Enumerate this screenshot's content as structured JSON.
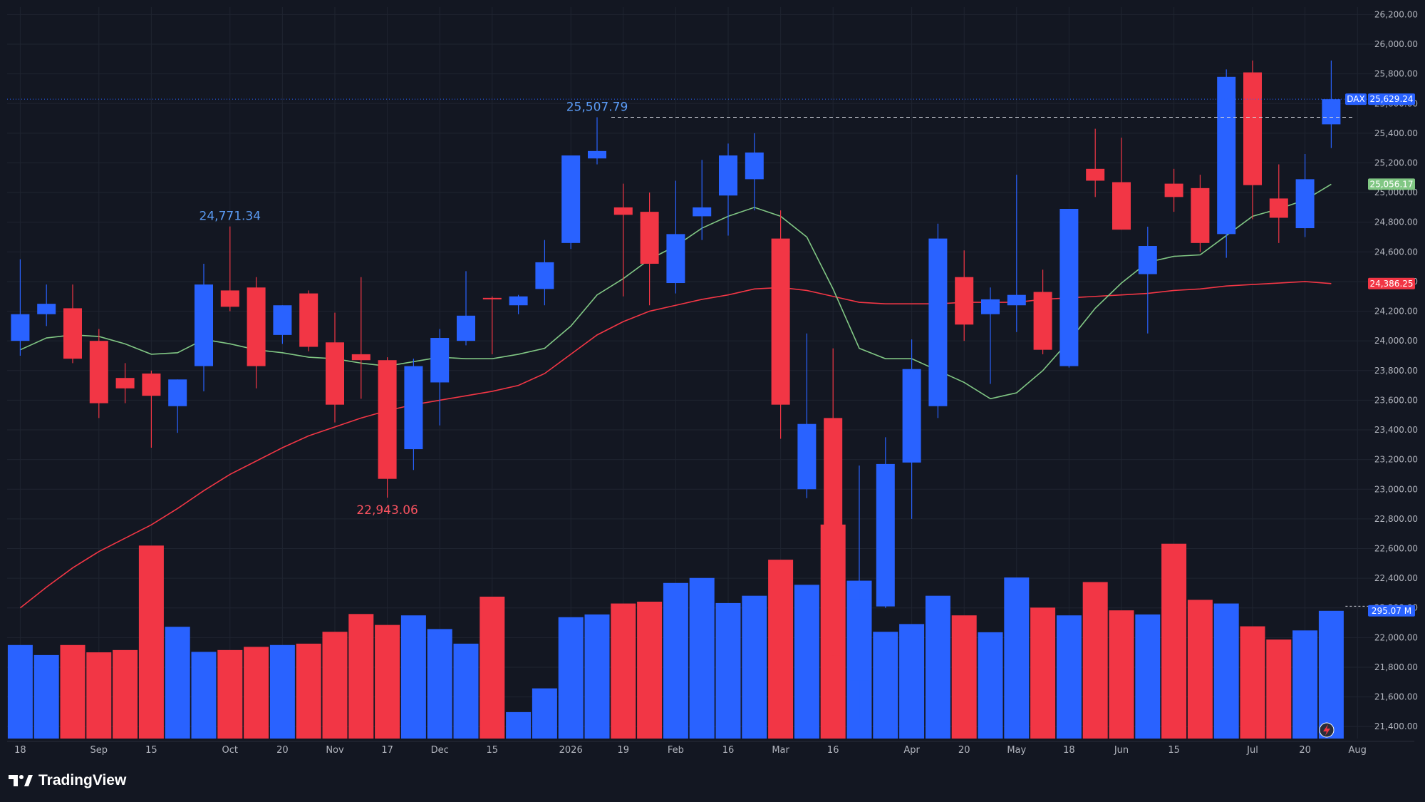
{
  "brand": {
    "name": "TradingView"
  },
  "colors": {
    "bg": "#131722",
    "up": "#2962ff",
    "down": "#f23645",
    "ma_fast": "#81c784",
    "ma_slow": "#f23645",
    "grid": "#1f2430"
  },
  "chart_data": {
    "type": "candlestick",
    "symbol": "DAX",
    "ylim": [
      21300,
      26250
    ],
    "yticks": [
      21400,
      21600,
      21800,
      22000,
      22200,
      22400,
      22600,
      22800,
      23000,
      23200,
      23400,
      23600,
      23800,
      24000,
      24200,
      24400,
      24600,
      24800,
      25000,
      25200,
      25400,
      25600,
      25800,
      26000,
      26200
    ],
    "ytick_labels": [
      "21,400.00",
      "21,600.00",
      "21,800.00",
      "22,000.00",
      "22,200.00",
      "22,400.00",
      "22,600.00",
      "22,800.00",
      "23,000.00",
      "23,200.00",
      "23,400.00",
      "23,600.00",
      "23,800.00",
      "24,000.00",
      "24,200.00",
      "24,400.00",
      "24,600.00",
      "24,800.00",
      "25,000.00",
      "25,200.00",
      "25,400.00",
      "25,600.00",
      "25,800.00",
      "26,000.00",
      "26,200.00"
    ],
    "xticks": [
      {
        "index": 0,
        "label": "18"
      },
      {
        "index": 3,
        "label": "Sep"
      },
      {
        "index": 5,
        "label": "15"
      },
      {
        "index": 8,
        "label": "Oct"
      },
      {
        "index": 10,
        "label": "20"
      },
      {
        "index": 12,
        "label": "Nov"
      },
      {
        "index": 14,
        "label": "17"
      },
      {
        "index": 16,
        "label": "Dec"
      },
      {
        "index": 18,
        "label": "15"
      },
      {
        "index": 21,
        "label": "2026"
      },
      {
        "index": 23,
        "label": "19"
      },
      {
        "index": 25,
        "label": "Feb"
      },
      {
        "index": 27,
        "label": "16"
      },
      {
        "index": 29,
        "label": "Mar"
      },
      {
        "index": 31,
        "label": "16"
      },
      {
        "index": 34,
        "label": "Apr"
      },
      {
        "index": 36,
        "label": "20"
      },
      {
        "index": 38,
        "label": "May"
      },
      {
        "index": 40,
        "label": "18"
      },
      {
        "index": 42,
        "label": "Jun"
      },
      {
        "index": 44,
        "label": "15"
      },
      {
        "index": 47,
        "label": "Jul"
      },
      {
        "index": 49,
        "label": "20"
      },
      {
        "index": 51,
        "label": "Aug"
      }
    ],
    "candles": [
      {
        "o": 24000,
        "h": 24550,
        "l": 23900,
        "c": 24180
      },
      {
        "o": 24180,
        "h": 24380,
        "l": 24100,
        "c": 24250
      },
      {
        "o": 24220,
        "h": 24380,
        "l": 23850,
        "c": 23880
      },
      {
        "o": 24000,
        "h": 24080,
        "l": 23480,
        "c": 23580
      },
      {
        "o": 23750,
        "h": 23850,
        "l": 23580,
        "c": 23680
      },
      {
        "o": 23780,
        "h": 23800,
        "l": 23280,
        "c": 23630
      },
      {
        "o": 23560,
        "h": 23740,
        "l": 23380,
        "c": 23740
      },
      {
        "o": 23830,
        "h": 24520,
        "l": 23660,
        "c": 24380
      },
      {
        "o": 24340,
        "h": 24771.34,
        "l": 24200,
        "c": 24230
      },
      {
        "o": 24360,
        "h": 24430,
        "l": 23680,
        "c": 23830
      },
      {
        "o": 24040,
        "h": 24240,
        "l": 23980,
        "c": 24240
      },
      {
        "o": 24320,
        "h": 24340,
        "l": 23930,
        "c": 23960
      },
      {
        "o": 23990,
        "h": 24190,
        "l": 23450,
        "c": 23570
      },
      {
        "o": 23910,
        "h": 24430,
        "l": 23610,
        "c": 23870
      },
      {
        "o": 23870,
        "h": 23890,
        "l": 22943.06,
        "c": 23070
      },
      {
        "o": 23270,
        "h": 23880,
        "l": 23130,
        "c": 23830
      },
      {
        "o": 23720,
        "h": 24080,
        "l": 23430,
        "c": 24020
      },
      {
        "o": 24000,
        "h": 24470,
        "l": 23970,
        "c": 24170
      },
      {
        "o": 24290,
        "h": 24300,
        "l": 23910,
        "c": 24280
      },
      {
        "o": 24240,
        "h": 24310,
        "l": 24180,
        "c": 24300
      },
      {
        "o": 24350,
        "h": 24680,
        "l": 24240,
        "c": 24530
      },
      {
        "o": 24660,
        "h": 25230,
        "l": 24620,
        "c": 25250
      },
      {
        "o": 25230,
        "h": 25507.79,
        "l": 25190,
        "c": 25280
      },
      {
        "o": 24900,
        "h": 25060,
        "l": 24300,
        "c": 24850
      },
      {
        "o": 24870,
        "h": 25000,
        "l": 24240,
        "c": 24520
      },
      {
        "o": 24390,
        "h": 25080,
        "l": 24320,
        "c": 24720
      },
      {
        "o": 24840,
        "h": 25220,
        "l": 24680,
        "c": 24900
      },
      {
        "o": 24980,
        "h": 25330,
        "l": 24710,
        "c": 25250
      },
      {
        "o": 25090,
        "h": 25400,
        "l": 24880,
        "c": 25270
      },
      {
        "o": 24690,
        "h": 24880,
        "l": 23340,
        "c": 23570
      },
      {
        "o": 23000,
        "h": 24050,
        "l": 22940,
        "c": 23440
      },
      {
        "o": 23480,
        "h": 23950,
        "l": 21720,
        "c": 21880
      },
      {
        "o": 21710,
        "h": 23160,
        "l": 21450,
        "c": 22260
      },
      {
        "o": 22210,
        "h": 23350,
        "l": 22200,
        "c": 23170
      },
      {
        "o": 23180,
        "h": 24010,
        "l": 22800,
        "c": 23810
      },
      {
        "o": 23560,
        "h": 24790,
        "l": 23480,
        "c": 24690
      },
      {
        "o": 24430,
        "h": 24610,
        "l": 24000,
        "c": 24110
      },
      {
        "o": 24180,
        "h": 24360,
        "l": 23710,
        "c": 24280
      },
      {
        "o": 24240,
        "h": 25120,
        "l": 24060,
        "c": 24310
      },
      {
        "o": 24330,
        "h": 24480,
        "l": 23910,
        "c": 23940
      },
      {
        "o": 23830,
        "h": 24890,
        "l": 23820,
        "c": 24890
      },
      {
        "o": 25160,
        "h": 25430,
        "l": 24970,
        "c": 25080
      },
      {
        "o": 25070,
        "h": 25370,
        "l": 24750,
        "c": 24750
      },
      {
        "o": 24450,
        "h": 24770,
        "l": 24050,
        "c": 24640
      },
      {
        "o": 25060,
        "h": 25160,
        "l": 24870,
        "c": 24970
      },
      {
        "o": 25030,
        "h": 25120,
        "l": 24600,
        "c": 24660
      },
      {
        "o": 24720,
        "h": 25830,
        "l": 24560,
        "c": 25780
      },
      {
        "o": 25810,
        "h": 25890,
        "l": 24820,
        "c": 25050
      },
      {
        "o": 24960,
        "h": 25190,
        "l": 24660,
        "c": 24830
      },
      {
        "o": 24760,
        "h": 25260,
        "l": 24700,
        "c": 25090
      },
      {
        "o": 25460,
        "h": 25890,
        "l": 25300,
        "c": 25629.24
      }
    ],
    "volume_colors": [
      "u",
      "u",
      "d",
      "d",
      "d",
      "d",
      "u",
      "u",
      "d",
      "d",
      "u",
      "d",
      "d",
      "d",
      "d",
      "u",
      "u",
      "u",
      "d",
      "u",
      "u",
      "u",
      "u",
      "d",
      "d",
      "u",
      "u",
      "u",
      "u",
      "d",
      "u",
      "d",
      "u",
      "u",
      "u",
      "u",
      "d",
      "u",
      "u",
      "d",
      "u",
      "d",
      "d",
      "u",
      "d",
      "d",
      "u",
      "d",
      "d",
      "u",
      "u"
    ],
    "volume_levels": [
      0.205,
      0.183,
      0.205,
      0.189,
      0.194,
      0.423,
      0.245,
      0.19,
      0.194,
      0.201,
      0.205,
      0.208,
      0.234,
      0.273,
      0.249,
      0.27,
      0.24,
      0.208,
      0.311,
      0.058,
      0.11,
      0.266,
      0.272,
      0.296,
      0.3,
      0.341,
      0.352,
      0.297,
      0.313,
      0.392,
      0.337,
      0.469,
      0.346,
      0.234,
      0.251,
      0.313,
      0.27,
      0.233,
      0.353,
      0.287,
      0.27,
      0.343,
      0.281,
      0.272,
      0.427,
      0.304,
      0.296,
      0.246,
      0.217,
      0.237,
      0.28
    ],
    "ma_fast": [
      23940,
      24020,
      24040,
      24030,
      23980,
      23910,
      23920,
      24010,
      23980,
      23940,
      23920,
      23890,
      23880,
      23850,
      23830,
      23860,
      23890,
      23880,
      23880,
      23910,
      23950,
      24100,
      24310,
      24420,
      24550,
      24640,
      24760,
      24840,
      24900,
      24840,
      24700,
      24350,
      23950,
      23880,
      23880,
      23800,
      23720,
      23610,
      23650,
      23800,
      24000,
      24220,
      24390,
      24530,
      24570,
      24580,
      24710,
      24840,
      24890,
      24950,
      25056.17
    ],
    "ma_slow": [
      22200,
      22340,
      22470,
      22580,
      22670,
      22760,
      22870,
      22990,
      23100,
      23190,
      23280,
      23360,
      23420,
      23480,
      23530,
      23570,
      23600,
      23630,
      23660,
      23700,
      23780,
      23910,
      24040,
      24130,
      24200,
      24240,
      24280,
      24310,
      24350,
      24360,
      24340,
      24300,
      24260,
      24250,
      24250,
      24250,
      24260,
      24260,
      24260,
      24280,
      24290,
      24300,
      24310,
      24320,
      24340,
      24350,
      24370,
      24380,
      24390,
      24400,
      24386.25
    ],
    "annotations": [
      {
        "index": 8,
        "price": 24771.34,
        "text": "24,771.34",
        "color": "up",
        "pos": "above"
      },
      {
        "index": 14,
        "price": 22943.06,
        "text": "22,943.06",
        "color": "down",
        "pos": "below"
      },
      {
        "index": 22,
        "price": 25507.79,
        "text": "25,507.79",
        "color": "up",
        "pos": "above"
      }
    ],
    "price_tags": [
      {
        "label": "DAX",
        "value": "25,629.24",
        "price": 25629.24,
        "color": "#2962ff"
      },
      {
        "value": "25,056.17",
        "price": 25056.17,
        "color": "#81c784"
      },
      {
        "value": "24,386.25",
        "price": 24386.25,
        "color": "#f23645"
      },
      {
        "value": "295.07 M",
        "level": 0.28,
        "color": "#2962ff"
      }
    ]
  }
}
